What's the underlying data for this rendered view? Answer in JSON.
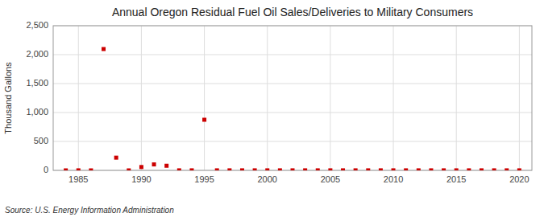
{
  "chart_data": {
    "type": "scatter",
    "title": "Annual Oregon Residual Fuel Oil Sales/Deliveries to Military Consumers",
    "ylabel": "Thousand Gallons",
    "source": "Source: U.S. Energy Information Administration",
    "x": [
      1984,
      1985,
      1986,
      1987,
      1988,
      1989,
      1990,
      1991,
      1992,
      1993,
      1994,
      1995,
      1996,
      1997,
      1998,
      1999,
      2000,
      2001,
      2002,
      2003,
      2004,
      2005,
      2006,
      2007,
      2008,
      2009,
      2010,
      2011,
      2012,
      2013,
      2014,
      2015,
      2016,
      2017,
      2018,
      2019,
      2020
    ],
    "values": [
      0,
      1,
      0,
      2097,
      220,
      0,
      58,
      103,
      80,
      1,
      1,
      875,
      1,
      1,
      1,
      1,
      1,
      1,
      1,
      1,
      1,
      1,
      1,
      1,
      1,
      1,
      1,
      1,
      1,
      1,
      1,
      1,
      1,
      1,
      1,
      1,
      1
    ],
    "color": "#cc0000",
    "marker": "square",
    "xlim": [
      1983,
      2021
    ],
    "ylim": [
      0,
      2500
    ],
    "xticks": [
      1985,
      1990,
      1995,
      2000,
      2005,
      2010,
      2015,
      2020
    ],
    "yticks": [
      0,
      500,
      {
        "value": 1000,
        "label": "1,000"
      },
      {
        "value": 1500,
        "label": "1,500"
      },
      {
        "value": 2000,
        "label": "2,000"
      },
      {
        "value": 2500,
        "label": "2,500"
      }
    ],
    "grid": true
  }
}
